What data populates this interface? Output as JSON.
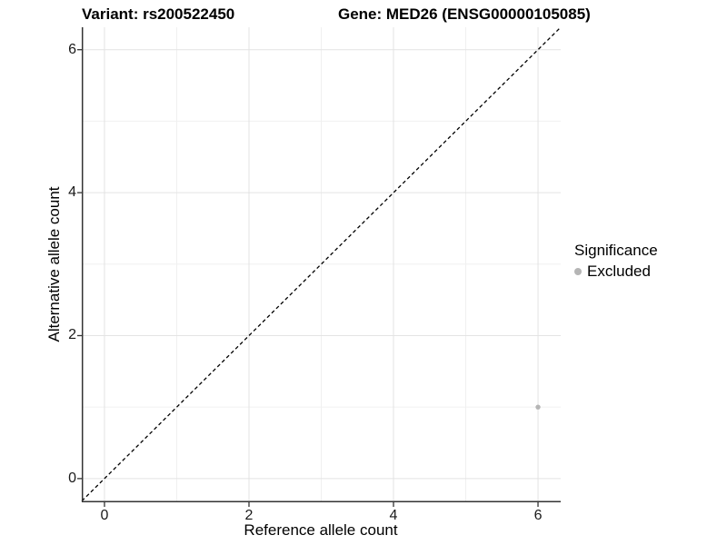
{
  "header": {
    "variant_title": "Variant: rs200522450",
    "gene_title": "Gene: MED26 (ENSG00000105085)"
  },
  "chart_data": {
    "type": "scatter",
    "title": "Variant: rs200522450   Gene: MED26 (ENSG00000105085)",
    "xlabel": "Reference allele count",
    "ylabel": "Alternative allele count",
    "xlim": [
      -0.314,
      6.314
    ],
    "ylim": [
      -0.332,
      6.314
    ],
    "x_ticks": [
      0,
      2,
      4,
      6
    ],
    "y_ticks": [
      0,
      2,
      4,
      6
    ],
    "x_minor_gridlines": [
      1,
      3,
      5
    ],
    "y_minor_gridlines": [
      1,
      3,
      5
    ],
    "grid": "on",
    "identity_line": {
      "style": "dashed",
      "slope": 1,
      "intercept": 0,
      "color": "#000000"
    },
    "series": [
      {
        "name": "Excluded",
        "color": "#b5b5b5",
        "points": [
          [
            6,
            1
          ]
        ]
      }
    ],
    "legend": {
      "title": "Significance",
      "position": "right",
      "items": [
        {
          "label": "Excluded",
          "color": "#b5b5b5"
        }
      ]
    },
    "colors": {
      "grid_major": "#e3e3e3",
      "grid_minor": "#f0f0f0",
      "axis_line": "#333333",
      "tick_mark": "#333333",
      "background": "#ffffff"
    }
  }
}
